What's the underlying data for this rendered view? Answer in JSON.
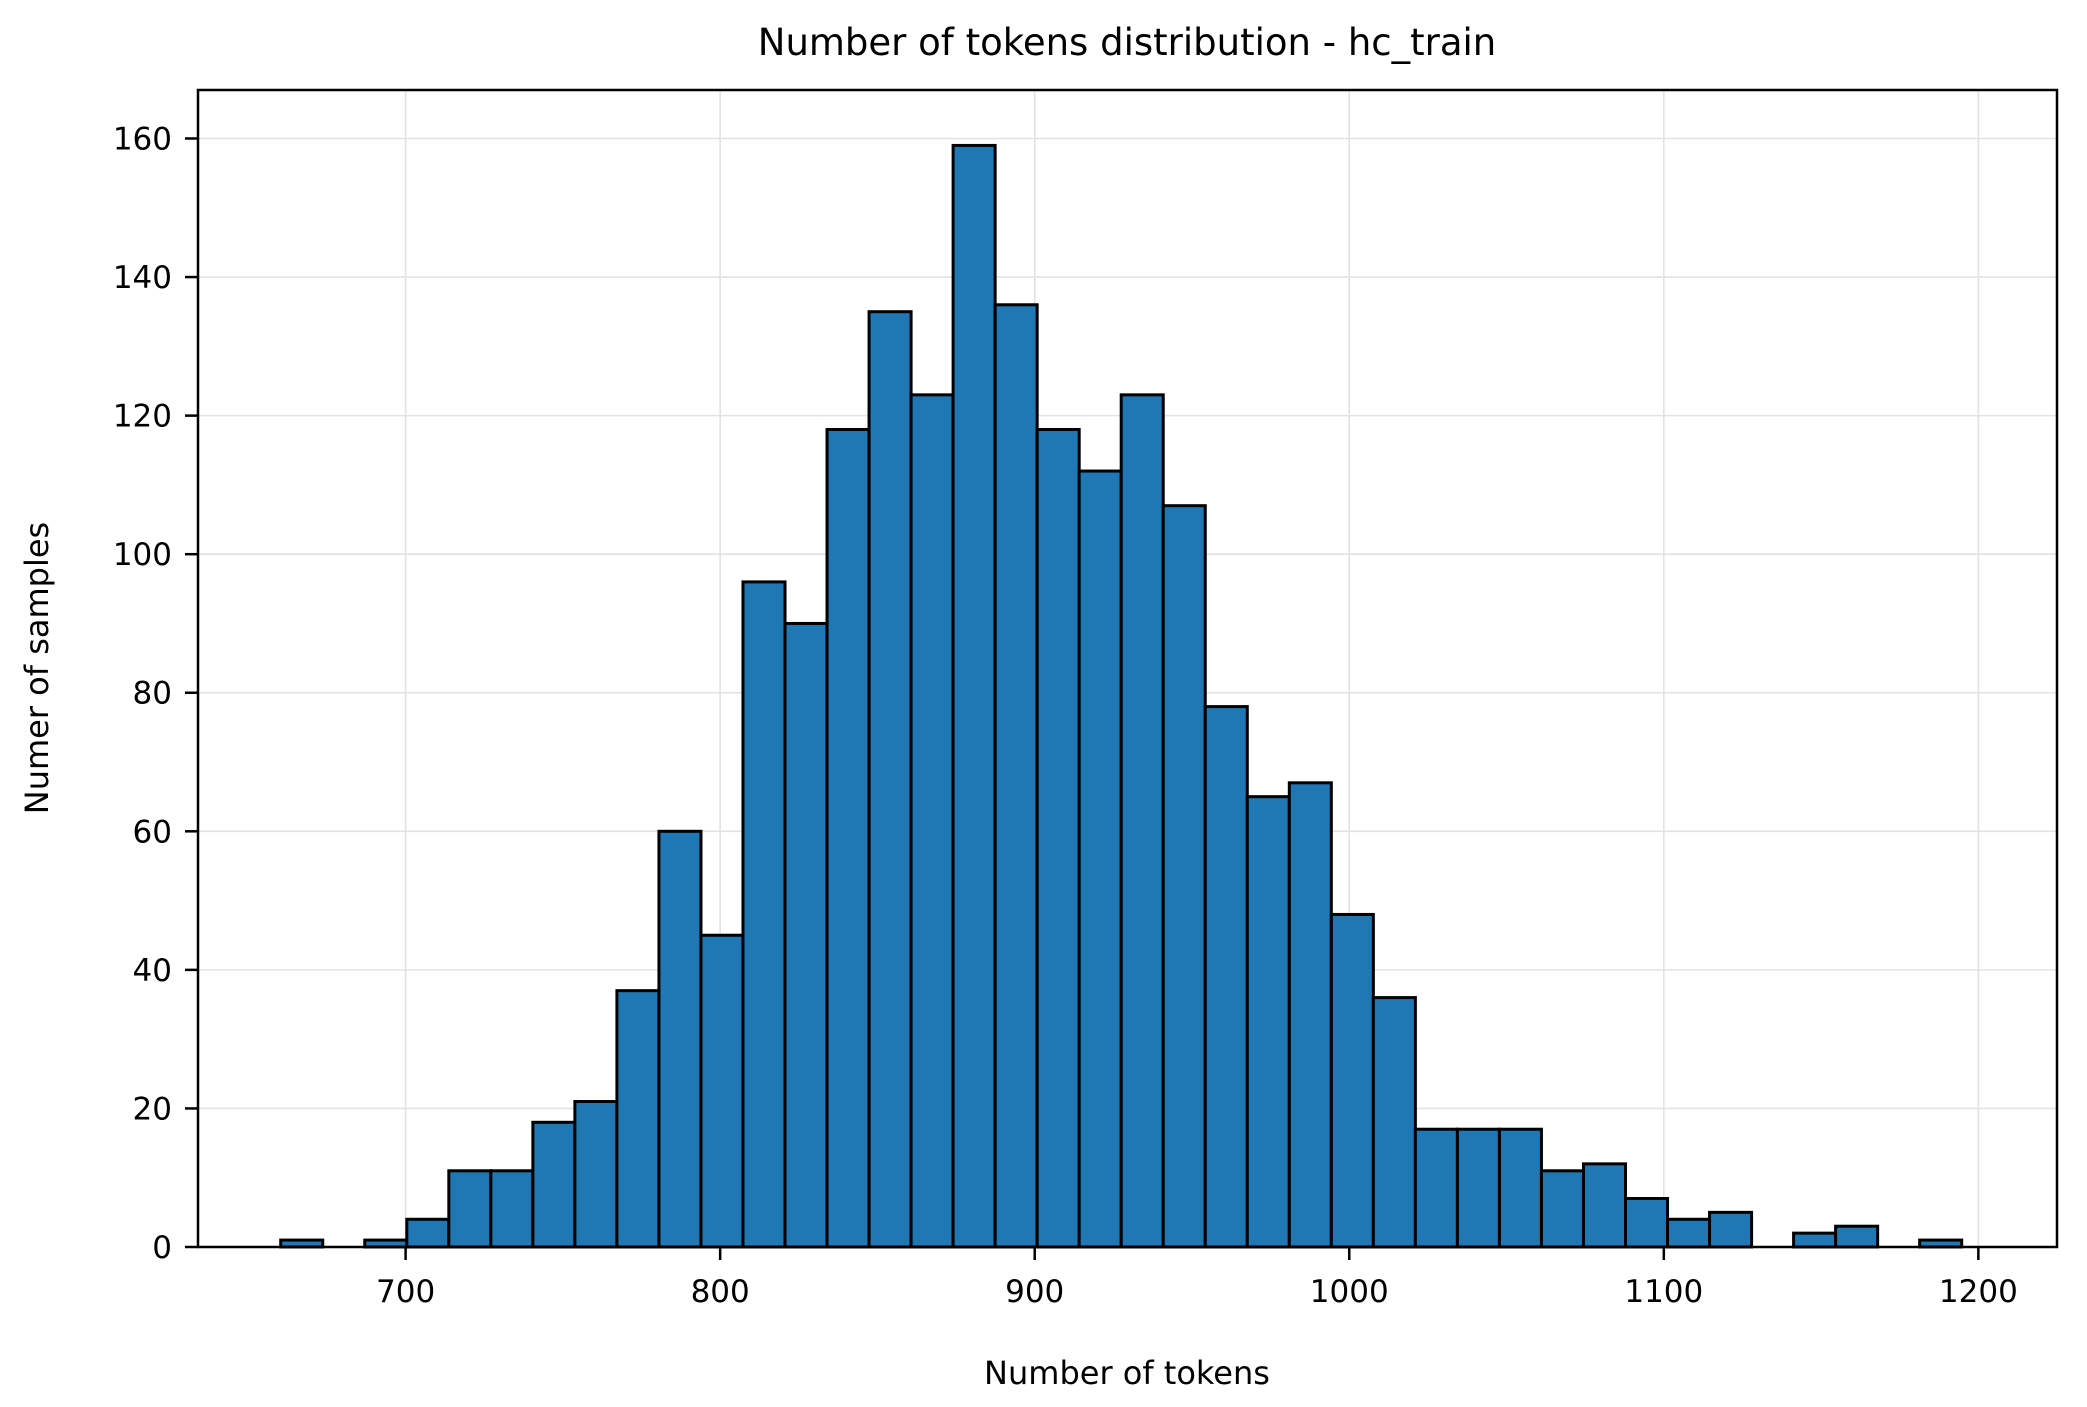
{
  "figure": {
    "title": "Number of tokens distribution - hc_train",
    "xlabel": "Number of tokens",
    "ylabel": "Numer of samples"
  },
  "chart_data": {
    "type": "bar",
    "subtype": "histogram",
    "title": "Number of tokens distribution - hc_train",
    "xlabel": "Number of tokens",
    "ylabel": "Numer of samples",
    "bin_start": 660.3,
    "bin_width": 13.36,
    "bin_counts": [
      1,
      0,
      1,
      4,
      11,
      11,
      18,
      21,
      37,
      60,
      45,
      96,
      90,
      118,
      135,
      123,
      159,
      136,
      118,
      112,
      123,
      107,
      78,
      65,
      67,
      48,
      36,
      17,
      17,
      17,
      11,
      12,
      7,
      4,
      5,
      0,
      2,
      3,
      0,
      1
    ],
    "x_ticks": [
      700,
      800,
      900,
      1000,
      1100,
      1200
    ],
    "y_ticks": [
      0,
      20,
      40,
      60,
      80,
      100,
      120,
      140,
      160
    ],
    "xlim": [
      634,
      1225
    ],
    "ylim": [
      0,
      167
    ],
    "grid": true,
    "legend": "none",
    "bar_color": "#1f77b4",
    "bar_edge_color": "#000000",
    "grid_color": "#e2e2e2",
    "spine_color": "#000000",
    "background": "#ffffff"
  }
}
